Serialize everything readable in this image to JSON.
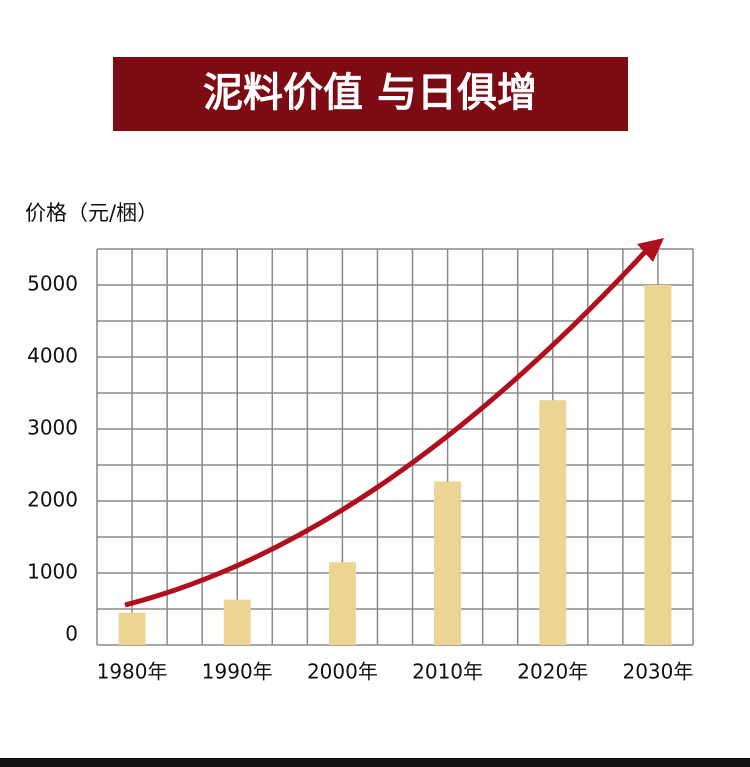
{
  "chart_data": {
    "type": "bar",
    "title": "泥料价值 与日俱增",
    "y_label": "价格（元/梱）",
    "categories": [
      "1980年",
      "1990年",
      "2000年",
      "2010年",
      "2020年",
      "2030年"
    ],
    "values": [
      450,
      630,
      1150,
      2270,
      3400,
      5000
    ],
    "color": "#ecd593",
    "ylim": [
      0,
      5500
    ],
    "yticks": [
      0,
      1000,
      2000,
      3000,
      4000,
      5000
    ],
    "minor_yticks": [
      500,
      1500,
      2500,
      3500,
      4500,
      5500
    ],
    "grid": true
  }
}
